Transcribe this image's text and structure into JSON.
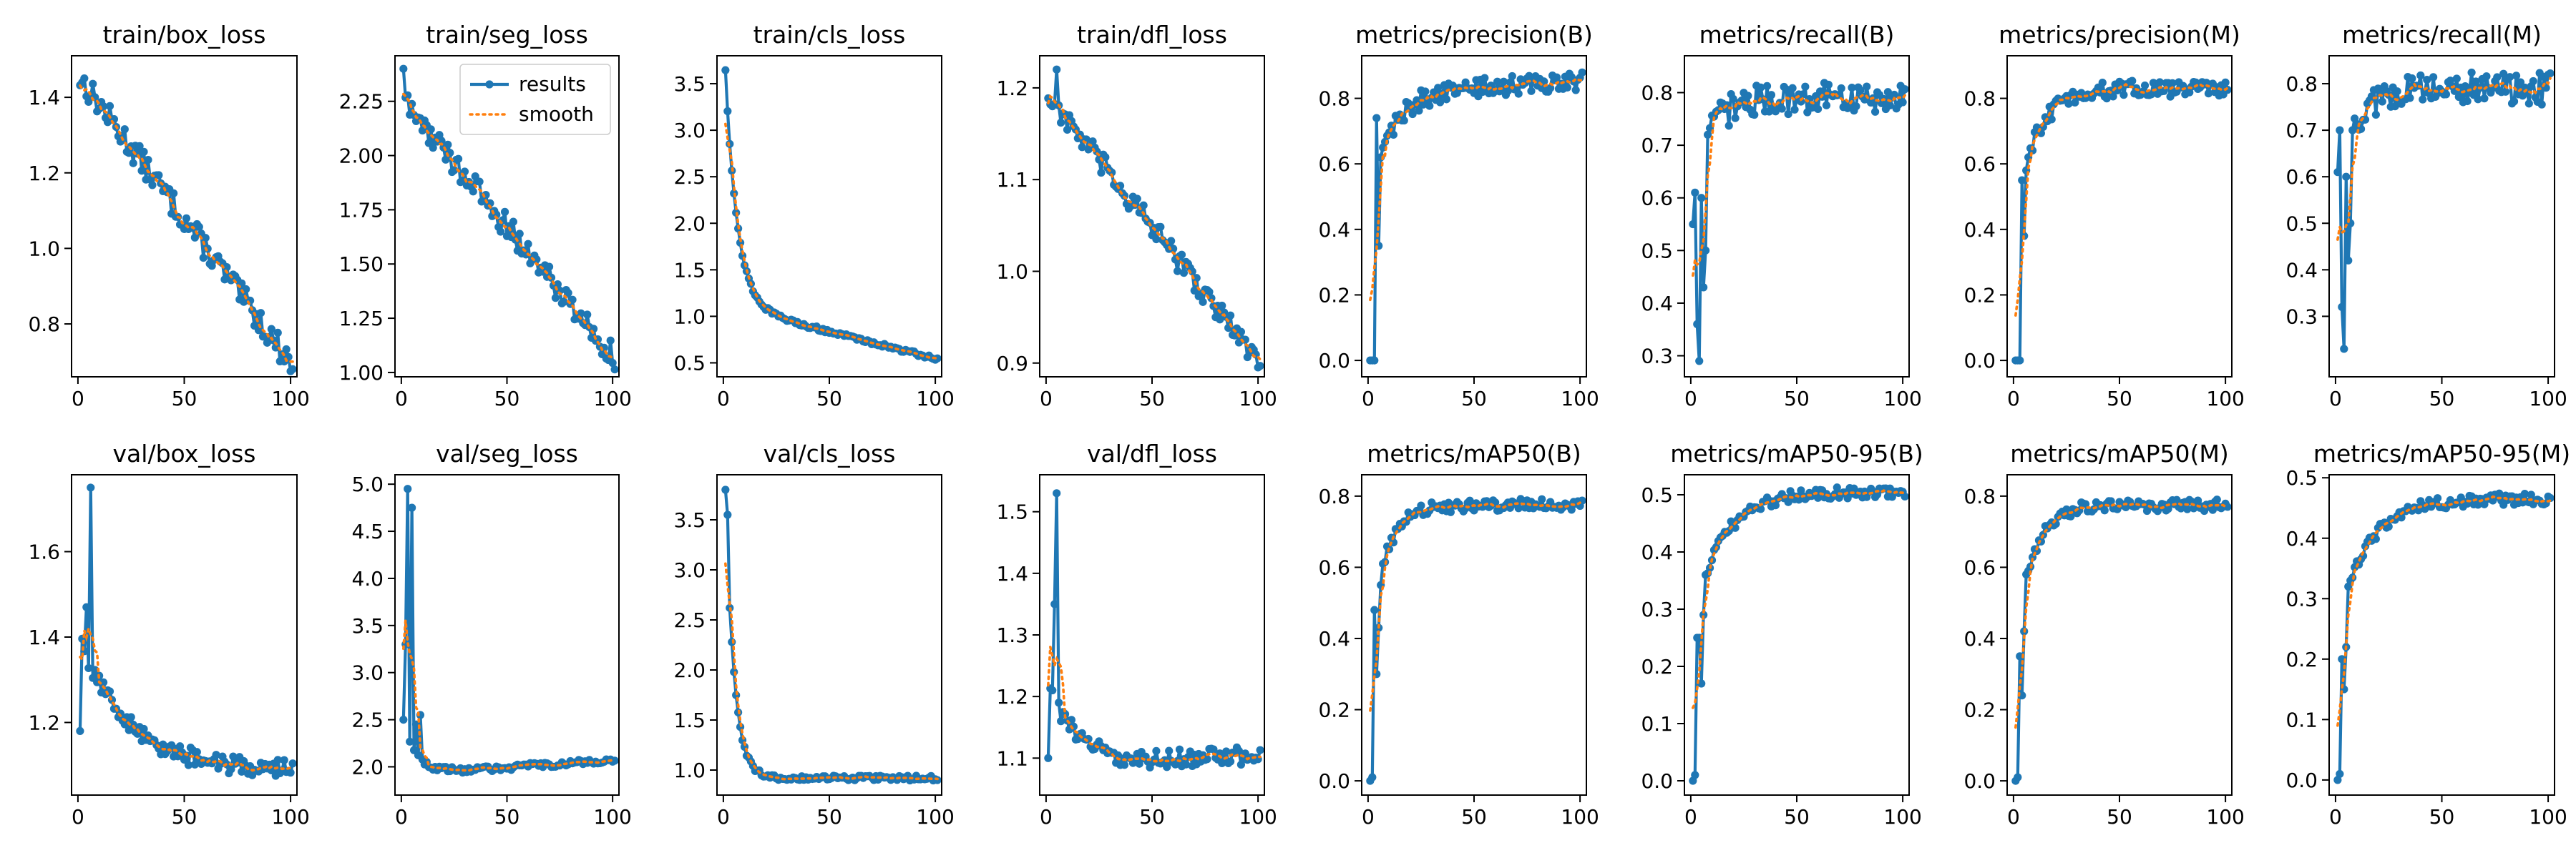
{
  "figure": {
    "colors": {
      "results": "#1f77b4",
      "smooth": "#ff7f0e",
      "axis": "#000000",
      "background": "#ffffff"
    },
    "legend": {
      "results_label": "results",
      "smooth_label": "smooth",
      "placement": "top-right of train/seg_loss"
    }
  },
  "chart_data": [
    {
      "type": "line",
      "title": "train/box_loss",
      "xlim": [
        -3,
        103
      ],
      "ylim": [
        0.66,
        1.51
      ],
      "xticks": [
        0,
        50,
        100
      ],
      "xtick_labels": [
        "0",
        "50",
        "100"
      ],
      "yticks": [
        0.8,
        1.0,
        1.2,
        1.4
      ],
      "ytick_labels": [
        "0.8",
        "1.0",
        "1.2",
        "1.4"
      ],
      "shape": {
        "kind": "linear",
        "start": 1.45,
        "end": 0.69,
        "noise": 0.035
      },
      "legend": false
    },
    {
      "type": "line",
      "title": "train/seg_loss",
      "xlim": [
        -3,
        103
      ],
      "ylim": [
        0.98,
        2.46
      ],
      "xticks": [
        0,
        50,
        100
      ],
      "xtick_labels": [
        "0",
        "50",
        "100"
      ],
      "yticks": [
        1.0,
        1.25,
        1.5,
        1.75,
        2.0,
        2.25
      ],
      "ytick_labels": [
        "1.00",
        "1.25",
        "1.50",
        "1.75",
        "2.00",
        "2.25"
      ],
      "shape": {
        "kind": "linear",
        "start": 2.25,
        "end": 1.07,
        "noise": 0.06,
        "spikes": [
          [
            0,
            2.4
          ]
        ]
      },
      "legend": true
    },
    {
      "type": "line",
      "title": "train/cls_loss",
      "xlim": [
        -3,
        103
      ],
      "ylim": [
        0.35,
        3.8
      ],
      "xticks": [
        0,
        50,
        100
      ],
      "xtick_labels": [
        "0",
        "50",
        "100"
      ],
      "yticks": [
        0.5,
        1.0,
        1.5,
        2.0,
        2.5,
        3.0,
        3.5
      ],
      "ytick_labels": [
        "0.5",
        "1.0",
        "1.5",
        "2.0",
        "2.5",
        "3.0",
        "3.5"
      ],
      "shape": {
        "kind": "decay",
        "start": 3.65,
        "plateau": 1.12,
        "rate": 5.5,
        "slope": -0.0058,
        "noise": 0.02
      },
      "legend": false
    },
    {
      "type": "line",
      "title": "train/dfl_loss",
      "xlim": [
        -3,
        103
      ],
      "ylim": [
        0.885,
        1.235
      ],
      "xticks": [
        0,
        50,
        100
      ],
      "xtick_labels": [
        "0",
        "50",
        "100"
      ],
      "yticks": [
        0.9,
        1.0,
        1.1,
        1.2
      ],
      "ytick_labels": [
        "0.9",
        "1.0",
        "1.1",
        "1.2"
      ],
      "shape": {
        "kind": "linear",
        "start": 1.19,
        "end": 0.9,
        "noise": 0.013,
        "spikes": [
          [
            4,
            1.22
          ]
        ]
      },
      "legend": false
    },
    {
      "type": "line",
      "title": "metrics/precision(B)",
      "xlim": [
        -3,
        103
      ],
      "ylim": [
        -0.05,
        0.93
      ],
      "xticks": [
        0,
        50,
        100
      ],
      "xtick_labels": [
        "0",
        "50",
        "100"
      ],
      "yticks": [
        0.0,
        0.2,
        0.4,
        0.6,
        0.8
      ],
      "ytick_labels": [
        "0.0",
        "0.2",
        "0.4",
        "0.6",
        "0.8"
      ],
      "shape": {
        "kind": "rise",
        "early": [
          0.0,
          0.0,
          0.0,
          0.74,
          0.35,
          0.62,
          0.65
        ],
        "plateau": 0.815,
        "rate": 10,
        "slope": 0.0004,
        "noise": 0.03
      },
      "legend": false
    },
    {
      "type": "line",
      "title": "metrics/recall(B)",
      "xlim": [
        -3,
        103
      ],
      "ylim": [
        0.26,
        0.87
      ],
      "xticks": [
        0,
        50,
        100
      ],
      "xtick_labels": [
        "0",
        "50",
        "100"
      ],
      "yticks": [
        0.3,
        0.4,
        0.5,
        0.6,
        0.7,
        0.8
      ],
      "ytick_labels": [
        "0.3",
        "0.4",
        "0.5",
        "0.6",
        "0.7",
        "0.8"
      ],
      "shape": {
        "kind": "rise",
        "early": [
          0.55,
          0.61,
          0.36,
          0.29,
          0.6,
          0.43,
          0.5,
          0.72
        ],
        "plateau": 0.79,
        "rate": 9,
        "noise": 0.03
      },
      "legend": false
    },
    {
      "type": "line",
      "title": "metrics/precision(M)",
      "xlim": [
        -3,
        103
      ],
      "ylim": [
        -0.05,
        0.93
      ],
      "xticks": [
        0,
        50,
        100
      ],
      "xtick_labels": [
        "0",
        "50",
        "100"
      ],
      "yticks": [
        0.0,
        0.2,
        0.4,
        0.6,
        0.8
      ],
      "ytick_labels": [
        "0.0",
        "0.2",
        "0.4",
        "0.6",
        "0.8"
      ],
      "shape": {
        "kind": "rise",
        "early": [
          0.0,
          0.0,
          0.0,
          0.55,
          0.38,
          0.58,
          0.62
        ],
        "plateau": 0.83,
        "rate": 10,
        "noise": 0.025
      },
      "legend": false
    },
    {
      "type": "line",
      "title": "metrics/recall(M)",
      "xlim": [
        -3,
        103
      ],
      "ylim": [
        0.17,
        0.86
      ],
      "xticks": [
        0,
        50,
        100
      ],
      "xtick_labels": [
        "0",
        "50",
        "100"
      ],
      "yticks": [
        0.3,
        0.4,
        0.5,
        0.6,
        0.7,
        0.8
      ],
      "ytick_labels": [
        "0.3",
        "0.4",
        "0.5",
        "0.6",
        "0.7",
        "0.8"
      ],
      "shape": {
        "kind": "rise",
        "early": [
          0.61,
          0.7,
          0.32,
          0.23,
          0.6,
          0.42,
          0.5,
          0.7
        ],
        "plateau": 0.79,
        "rate": 9,
        "noise": 0.035
      },
      "legend": false
    },
    {
      "type": "line",
      "title": "val/box_loss",
      "xlim": [
        -3,
        103
      ],
      "ylim": [
        1.03,
        1.78
      ],
      "xticks": [
        0,
        50,
        100
      ],
      "xtick_labels": [
        "0",
        "50",
        "100"
      ],
      "yticks": [
        1.2,
        1.4,
        1.6
      ],
      "ytick_labels": [
        "1.2",
        "1.4",
        "1.6"
      ],
      "shape": {
        "kind": "decay",
        "start": 1.4,
        "plateau": 1.09,
        "rate": 22,
        "noise": 0.022,
        "spikes": [
          [
            0,
            1.18
          ],
          [
            3,
            1.47
          ],
          [
            5,
            1.75
          ]
        ]
      },
      "legend": false
    },
    {
      "type": "line",
      "title": "val/seg_loss",
      "xlim": [
        -3,
        103
      ],
      "ylim": [
        1.7,
        5.1
      ],
      "xticks": [
        0,
        50,
        100
      ],
      "xtick_labels": [
        "0",
        "50",
        "100"
      ],
      "yticks": [
        2.0,
        2.5,
        3.0,
        3.5,
        4.0,
        4.5,
        5.0
      ],
      "ytick_labels": [
        "2.0",
        "2.5",
        "3.0",
        "3.5",
        "4.0",
        "4.5",
        "5.0"
      ],
      "shape": {
        "kind": "decay",
        "start": 2.5,
        "plateau": 1.92,
        "rate": 6,
        "slope": 0.0015,
        "noise": 0.03,
        "spikes": [
          [
            0,
            2.5
          ],
          [
            1,
            3.3
          ],
          [
            2,
            4.95
          ],
          [
            4,
            4.75
          ],
          [
            6,
            2.45
          ],
          [
            8,
            2.55
          ]
        ]
      },
      "legend": false
    },
    {
      "type": "line",
      "title": "val/cls_loss",
      "xlim": [
        -3,
        103
      ],
      "ylim": [
        0.75,
        3.95
      ],
      "xticks": [
        0,
        50,
        100
      ],
      "xtick_labels": [
        "0",
        "50",
        "100"
      ],
      "yticks": [
        1.0,
        1.5,
        2.0,
        2.5,
        3.0,
        3.5
      ],
      "ytick_labels": [
        "1.0",
        "1.5",
        "2.0",
        "2.5",
        "3.0",
        "3.5"
      ],
      "shape": {
        "kind": "decay",
        "start": 3.8,
        "plateau": 0.92,
        "rate": 4,
        "noise": 0.025,
        "spikes": [
          [
            0,
            3.8
          ],
          [
            1,
            3.55
          ],
          [
            2,
            2.62
          ]
        ]
      },
      "legend": false
    },
    {
      "type": "line",
      "title": "val/dfl_loss",
      "xlim": [
        -3,
        103
      ],
      "ylim": [
        1.04,
        1.56
      ],
      "xticks": [
        0,
        50,
        100
      ],
      "xtick_labels": [
        "0",
        "50",
        "100"
      ],
      "yticks": [
        1.1,
        1.2,
        1.3,
        1.4,
        1.5
      ],
      "ytick_labels": [
        "1.1",
        "1.2",
        "1.3",
        "1.4",
        "1.5"
      ],
      "shape": {
        "kind": "decay",
        "start": 1.22,
        "plateau": 1.085,
        "rate": 14,
        "slope": 0.0002,
        "noise": 0.015,
        "spikes": [
          [
            0,
            1.1
          ],
          [
            2,
            1.21
          ],
          [
            3,
            1.35
          ],
          [
            4,
            1.53
          ],
          [
            5,
            1.19
          ],
          [
            6,
            1.16
          ]
        ]
      },
      "legend": false
    },
    {
      "type": "line",
      "title": "metrics/mAP50(B)",
      "xlim": [
        -3,
        103
      ],
      "ylim": [
        -0.04,
        0.86
      ],
      "xticks": [
        0,
        50,
        100
      ],
      "xtick_labels": [
        "0",
        "50",
        "100"
      ],
      "yticks": [
        0.0,
        0.2,
        0.4,
        0.6,
        0.8
      ],
      "ytick_labels": [
        "0.0",
        "0.2",
        "0.4",
        "0.6",
        "0.8"
      ],
      "shape": {
        "kind": "rise",
        "early": [
          0.0,
          0.01,
          0.48,
          0.3,
          0.43,
          0.55,
          0.61
        ],
        "plateau": 0.775,
        "rate": 8,
        "noise": 0.017
      },
      "legend": false
    },
    {
      "type": "line",
      "title": "metrics/mAP50-95(B)",
      "xlim": [
        -3,
        103
      ],
      "ylim": [
        -0.025,
        0.535
      ],
      "xticks": [
        0,
        50,
        100
      ],
      "xtick_labels": [
        "0",
        "50",
        "100"
      ],
      "yticks": [
        0.0,
        0.1,
        0.2,
        0.3,
        0.4,
        0.5
      ],
      "ytick_labels": [
        "0.0",
        "0.1",
        "0.2",
        "0.3",
        "0.4",
        "0.5"
      ],
      "shape": {
        "kind": "rise",
        "early": [
          0.0,
          0.01,
          0.25,
          0.25,
          0.17,
          0.29,
          0.36
        ],
        "plateau": 0.505,
        "rate": 14,
        "noise": 0.01
      },
      "legend": false
    },
    {
      "type": "line",
      "title": "metrics/mAP50(M)",
      "xlim": [
        -3,
        103
      ],
      "ylim": [
        -0.04,
        0.86
      ],
      "xticks": [
        0,
        50,
        100
      ],
      "xtick_labels": [
        "0",
        "50",
        "100"
      ],
      "yticks": [
        0.0,
        0.2,
        0.4,
        0.6,
        0.8
      ],
      "ytick_labels": [
        "0.0",
        "0.2",
        "0.4",
        "0.6",
        "0.8"
      ],
      "shape": {
        "kind": "rise",
        "early": [
          0.0,
          0.01,
          0.35,
          0.24,
          0.42,
          0.58,
          0.59
        ],
        "plateau": 0.775,
        "rate": 8,
        "noise": 0.017
      },
      "legend": false
    },
    {
      "type": "line",
      "title": "metrics/mAP50-95(M)",
      "xlim": [
        -3,
        103
      ],
      "ylim": [
        -0.025,
        0.505
      ],
      "xticks": [
        0,
        50,
        100
      ],
      "xtick_labels": [
        "0",
        "50",
        "100"
      ],
      "yticks": [
        0.0,
        0.1,
        0.2,
        0.3,
        0.4,
        0.5
      ],
      "ytick_labels": [
        "0.0",
        "0.1",
        "0.2",
        "0.3",
        "0.4",
        "0.5"
      ],
      "shape": {
        "kind": "rise",
        "early": [
          0.0,
          0.01,
          0.2,
          0.15,
          0.22,
          0.32,
          0.33
        ],
        "plateau": 0.465,
        "rate": 14,
        "noise": 0.01
      },
      "legend": false
    }
  ]
}
